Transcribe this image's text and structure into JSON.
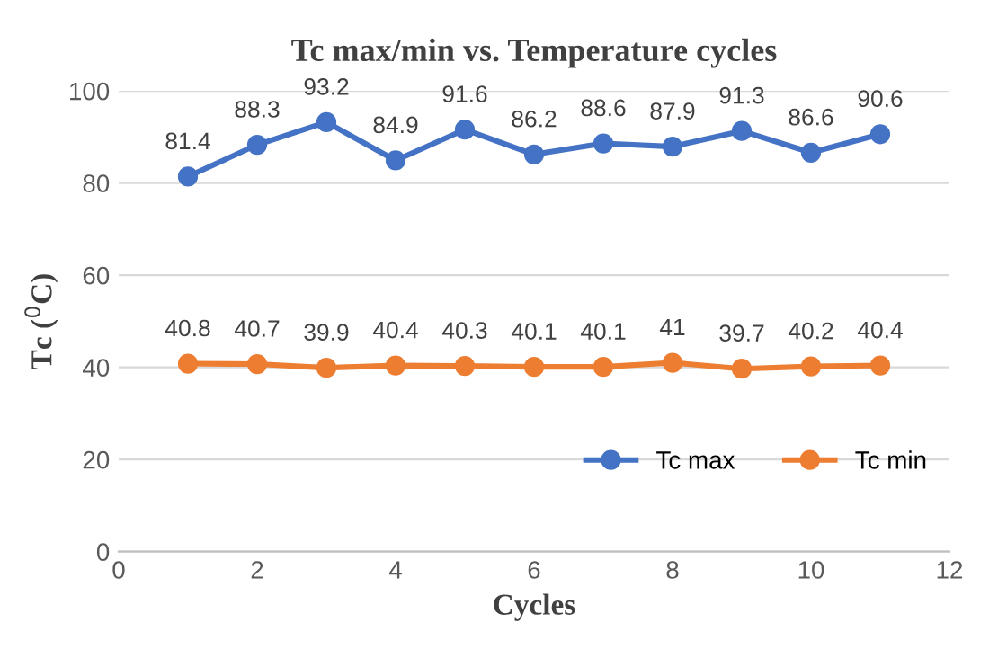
{
  "chart_data": {
    "type": "line",
    "title": "Tc max/min vs. Temperature cycles",
    "xlabel": "Cycles",
    "ylabel": "Tc ($^{0}$C)",
    "x": [
      1,
      2,
      3,
      4,
      5,
      6,
      7,
      8,
      9,
      10,
      11
    ],
    "series": [
      {
        "name": "Tc max",
        "color": "#4472c4",
        "values": [
          81.4,
          88.3,
          93.2,
          84.9,
          91.6,
          86.2,
          88.6,
          87.9,
          91.3,
          86.6,
          90.6
        ]
      },
      {
        "name": "Tc min",
        "color": "#ed7d31",
        "values": [
          40.8,
          40.7,
          39.9,
          40.4,
          40.3,
          40.1,
          40.1,
          41,
          39.7,
          40.2,
          40.4
        ]
      }
    ],
    "xlim": [
      0,
      12
    ],
    "xticks": [
      0,
      2,
      4,
      6,
      8,
      10,
      12
    ],
    "ylim": [
      0,
      100
    ],
    "yticks": [
      0,
      20,
      40,
      60,
      80,
      100
    ],
    "grid": "y",
    "legend": "bottom right",
    "marker": "circle",
    "line_style": "solid",
    "data_labels": true
  }
}
